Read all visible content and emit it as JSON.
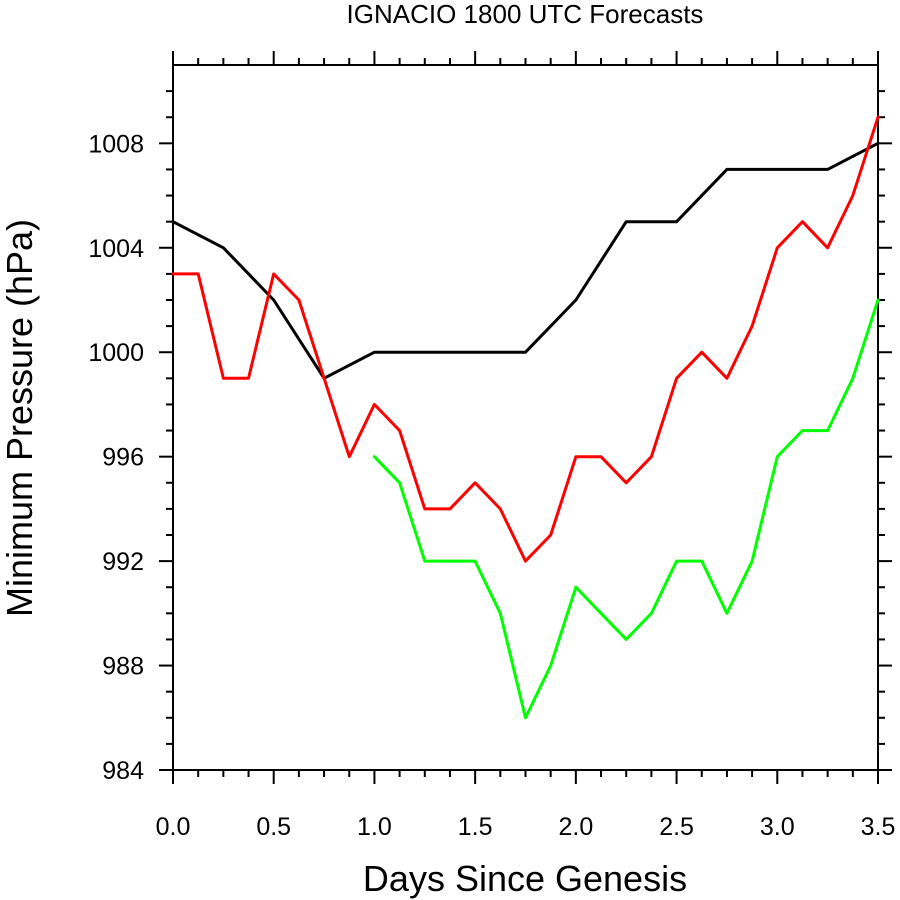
{
  "chart_data": {
    "type": "line",
    "title": "IGNACIO 1800 UTC Forecasts",
    "xlabel": "Days Since Genesis",
    "ylabel": "Minimum Pressure (hPa)",
    "xlim": [
      0,
      3.5
    ],
    "ylim": [
      984,
      1011
    ],
    "x_ticks": [
      0.0,
      0.5,
      1.0,
      1.5,
      2.0,
      2.5,
      3.0,
      3.5
    ],
    "x_tick_labels": [
      "0.0",
      "0.5",
      "1.0",
      "1.5",
      "2.0",
      "2.5",
      "3.0",
      "3.5"
    ],
    "y_ticks": [
      984,
      988,
      992,
      996,
      1000,
      1004,
      1008
    ],
    "y_tick_labels": [
      "984",
      "988",
      "992",
      "996",
      "1000",
      "1004",
      "1008"
    ],
    "grid": false,
    "legend": "none",
    "series": [
      {
        "color": "#000000",
        "x": [
          0.0,
          0.25,
          0.5,
          0.75,
          1.0,
          1.25,
          1.5,
          1.75,
          2.0,
          2.25,
          2.5,
          2.75,
          3.0,
          3.25,
          3.5
        ],
        "y": [
          1005,
          1004,
          1002,
          999,
          1000,
          1000,
          1000,
          1000,
          1002,
          1005,
          1005,
          1007,
          1007,
          1007,
          1008
        ]
      },
      {
        "color": "#ff0000",
        "x": [
          0.0,
          0.125,
          0.25,
          0.375,
          0.5,
          0.625,
          0.75,
          0.875,
          1.0,
          1.125,
          1.25,
          1.375,
          1.5,
          1.625,
          1.75,
          1.875,
          2.0,
          2.125,
          2.25,
          2.375,
          2.5,
          2.625,
          2.75,
          2.875,
          3.0,
          3.125,
          3.25,
          3.375,
          3.5
        ],
        "y": [
          1003,
          1003,
          999,
          999,
          1003,
          1002,
          999,
          996,
          998,
          997,
          994,
          994,
          995,
          994,
          992,
          993,
          996,
          996,
          995,
          996,
          999,
          1000,
          999,
          1001,
          1004,
          1005,
          1004,
          1006,
          1009
        ]
      },
      {
        "color": "#00ff00",
        "x": [
          1.0,
          1.125,
          1.25,
          1.375,
          1.5,
          1.625,
          1.75,
          1.875,
          2.0,
          2.125,
          2.25,
          2.375,
          2.5,
          2.625,
          2.75,
          2.875,
          3.0,
          3.125,
          3.25,
          3.375,
          3.5
        ],
        "y": [
          996,
          995,
          992,
          992,
          992,
          990,
          986,
          988,
          991,
          990,
          989,
          990,
          992,
          992,
          990,
          992,
          996,
          997,
          997,
          999,
          1002
        ]
      }
    ]
  }
}
